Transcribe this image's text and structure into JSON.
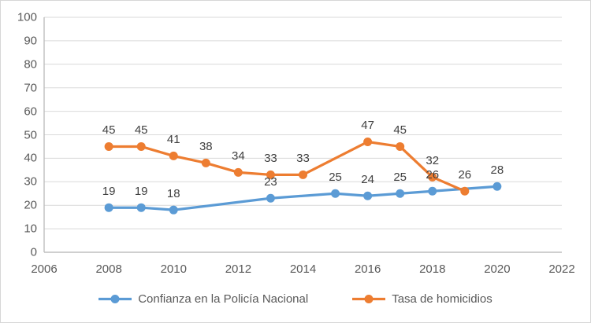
{
  "chart_data": {
    "type": "line",
    "title": "",
    "xlabel": "",
    "ylabel": "",
    "xlim": [
      2006,
      2022
    ],
    "ylim": [
      0,
      100
    ],
    "x_ticks": [
      2006,
      2008,
      2010,
      2012,
      2014,
      2016,
      2018,
      2020,
      2022
    ],
    "y_ticks": [
      0,
      10,
      20,
      30,
      40,
      50,
      60,
      70,
      80,
      90,
      100
    ],
    "grid": "horizontal",
    "legend_position": "bottom-center",
    "series": [
      {
        "name": "Confianza en la Policía Nacional",
        "color": "#5B9BD5",
        "marker": "circle",
        "data_labels": true,
        "points": [
          [
            2008,
            19
          ],
          [
            2009,
            19
          ],
          [
            2010,
            18
          ],
          [
            2013,
            23
          ],
          [
            2015,
            25
          ],
          [
            2016,
            24
          ],
          [
            2017,
            25
          ],
          [
            2018,
            26
          ],
          [
            2020,
            28
          ]
        ]
      },
      {
        "name": "Tasa de homicidios",
        "color": "#ED7D31",
        "marker": "circle",
        "data_labels": true,
        "points": [
          [
            2008,
            45
          ],
          [
            2009,
            45
          ],
          [
            2010,
            41
          ],
          [
            2011,
            38
          ],
          [
            2012,
            34
          ],
          [
            2013,
            33
          ],
          [
            2014,
            33
          ],
          [
            2016,
            47
          ],
          [
            2017,
            45
          ],
          [
            2018,
            32
          ],
          [
            2019,
            26
          ]
        ]
      }
    ],
    "colors": {
      "gridline": "#D9D9D9",
      "axis_line": "#BFBFBF",
      "tick_label": "#595959",
      "data_label": "#404040",
      "legend_label": "#595959",
      "chart_border": "#D6D6D6",
      "background": "#FFFFFF"
    }
  }
}
